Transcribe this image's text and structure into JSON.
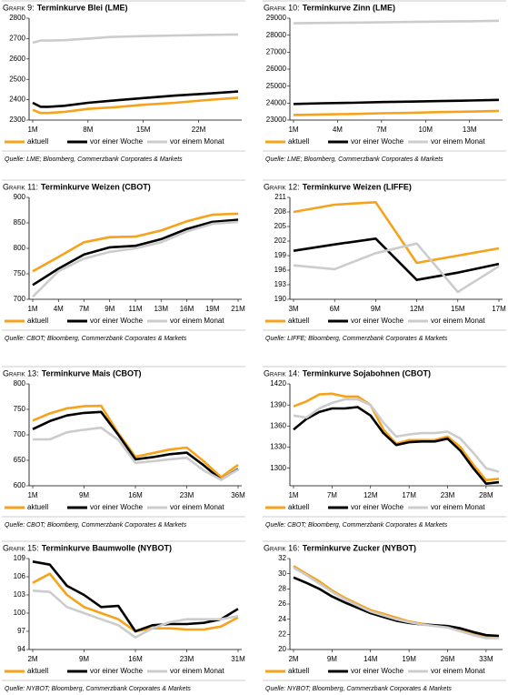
{
  "chart_data": [
    {
      "type": "line",
      "label": "Grafik 9:",
      "title": "Terminkurve Blei (LME)",
      "source": "Quelle: LME; Bloomberg, Commerzbank Corporates & Markets",
      "x": [
        1,
        2,
        3,
        5,
        8,
        11,
        15,
        19,
        23,
        27
      ],
      "xlim": [
        1,
        27
      ],
      "xticks": [
        {
          "value": 1,
          "label": "1M"
        },
        {
          "value": 8,
          "label": "8M"
        },
        {
          "value": 15,
          "label": "15M"
        },
        {
          "value": 22,
          "label": "22M"
        }
      ],
      "ylim": [
        2300,
        2800
      ],
      "yticks": [
        2300,
        2400,
        2500,
        2600,
        2700,
        2800
      ],
      "series": [
        {
          "name": "aktuell",
          "color": "#f7a21b",
          "values": [
            2350,
            2335,
            2335,
            2340,
            2355,
            2362,
            2375,
            2385,
            2398,
            2410
          ]
        },
        {
          "name": "vor einer Woche",
          "color": "#000000",
          "values": [
            2385,
            2365,
            2365,
            2370,
            2385,
            2395,
            2408,
            2420,
            2430,
            2440
          ]
        },
        {
          "name": "vor einem Monat",
          "color": "#cccccc",
          "values": [
            2680,
            2690,
            2690,
            2692,
            2700,
            2708,
            2712,
            2715,
            2718,
            2720
          ]
        }
      ]
    },
    {
      "type": "line",
      "label": "Grafik 10:",
      "title": "Terminkurve Zinn (LME)",
      "source": "Quelle: LME; Bloomberg, Commerzbank Corporates & Markets",
      "x": [
        1,
        3,
        5,
        7,
        9,
        11,
        13,
        15
      ],
      "xlim": [
        1,
        15
      ],
      "xticks": [
        {
          "value": 1,
          "label": "1M"
        },
        {
          "value": 4,
          "label": "4M"
        },
        {
          "value": 7,
          "label": "7M"
        },
        {
          "value": 10,
          "label": "10M"
        },
        {
          "value": 13,
          "label": "13M"
        }
      ],
      "ylim": [
        23000,
        29000
      ],
      "yticks": [
        23000,
        24000,
        25000,
        26000,
        27000,
        28000,
        29000
      ],
      "series": [
        {
          "name": "aktuell",
          "color": "#f7a21b",
          "values": [
            23300,
            23330,
            23360,
            23400,
            23430,
            23470,
            23500,
            23540
          ]
        },
        {
          "name": "vor einer Woche",
          "color": "#000000",
          "values": [
            23950,
            23990,
            24020,
            24060,
            24090,
            24120,
            24150,
            24190
          ]
        },
        {
          "name": "vor einem Monat",
          "color": "#cccccc",
          "values": [
            28700,
            28720,
            28740,
            28760,
            28780,
            28800,
            28820,
            28850
          ]
        }
      ]
    },
    {
      "type": "line",
      "label": "Grafik 11:",
      "title": "Terminkurve Weizen (CBOT)",
      "source": "Quelle: CBOT; Bloomberg, Commerzbank Corporates & Markets",
      "categories": [
        "1M",
        "4M",
        "7M",
        "9M",
        "11M",
        "13M",
        "16M",
        "19M",
        "21M"
      ],
      "ylim": [
        700,
        900
      ],
      "yticks": [
        700,
        750,
        800,
        850,
        900
      ],
      "series": [
        {
          "name": "aktuell",
          "color": "#f7a21b",
          "values": [
            755,
            783,
            812,
            822,
            823,
            835,
            853,
            866,
            868
          ]
        },
        {
          "name": "vor einer Woche",
          "color": "#000000",
          "values": [
            728,
            760,
            788,
            802,
            805,
            818,
            838,
            852,
            856
          ]
        },
        {
          "name": "vor einem Monat",
          "color": "#cccccc",
          "values": [
            705,
            755,
            780,
            793,
            800,
            812,
            833,
            848,
            852
          ]
        }
      ]
    },
    {
      "type": "line",
      "label": "Grafik 12:",
      "title": "Terminkurve Weizen (LIFFE)",
      "source": "Quelle: LIFFE; Bloomberg, Commerzbank Corporates & Markets",
      "categories": [
        "3M",
        "6M",
        "9M",
        "12M",
        "15M",
        "17M"
      ],
      "ylim": [
        190,
        211
      ],
      "yticks": [
        190,
        193,
        196,
        199,
        202,
        205,
        208,
        211
      ],
      "series": [
        {
          "name": "aktuell",
          "color": "#f7a21b",
          "values": [
            208,
            209.5,
            210,
            197.5,
            199,
            200.5
          ]
        },
        {
          "name": "vor einer Woche",
          "color": "#000000",
          "values": [
            200,
            201.3,
            202.5,
            194,
            195.5,
            197.3
          ]
        },
        {
          "name": "vor einem Monat",
          "color": "#cccccc",
          "values": [
            197,
            196.2,
            199.5,
            201.5,
            191.5,
            196.8
          ]
        }
      ]
    },
    {
      "type": "line",
      "label": "Grafik 13:",
      "title": "Terminkurve Mais (CBOT)",
      "source": "Quelle: CBOT; Bloomberg, Commerzbank Corporates & Markets",
      "categories": [
        "1M",
        null,
        null,
        "9M",
        null,
        null,
        "16M",
        null,
        null,
        "23M",
        null,
        null,
        "36M"
      ],
      "ylim": [
        600,
        800
      ],
      "yticks": [
        600,
        650,
        700,
        750,
        800
      ],
      "series": [
        {
          "name": "aktuell",
          "color": "#f7a21b",
          "values": [
            728,
            742,
            752,
            756,
            757,
            703,
            657,
            664,
            671,
            675,
            648,
            617,
            641
          ]
        },
        {
          "name": "vor einer Woche",
          "color": "#000000",
          "values": [
            711,
            727,
            738,
            743,
            745,
            700,
            652,
            656,
            662,
            665,
            640,
            612,
            633
          ]
        },
        {
          "name": "vor einem Monat",
          "color": "#cccccc",
          "values": [
            691,
            691,
            705,
            710,
            714,
            690,
            645,
            648,
            652,
            655,
            630,
            612,
            632
          ]
        }
      ]
    },
    {
      "type": "line",
      "label": "Grafik 14:",
      "title": "Terminkurve Sojabohnen (CBOT)",
      "source": "Quelle: CBOT; Bloomberg, Commerzbank Corporates & Markets",
      "categories": [
        "1M",
        null,
        null,
        "7M",
        null,
        null,
        "12M",
        null,
        null,
        "17M",
        null,
        null,
        "23M",
        null,
        null,
        "28M",
        null
      ],
      "ylim": [
        1275,
        1420
      ],
      "yticks": [
        1300,
        1330,
        1360,
        1390,
        1420
      ],
      "series": [
        {
          "name": "aktuell",
          "color": "#f7a21b",
          "values": [
            1388,
            1395,
            1405,
            1406,
            1402,
            1402,
            1390,
            1355,
            1335,
            1340,
            1340,
            1340,
            1345,
            1330,
            1305,
            1283,
            1285
          ]
        },
        {
          "name": "vor einer Woche",
          "color": "#000000",
          "values": [
            1355,
            1370,
            1380,
            1385,
            1385,
            1387,
            1375,
            1350,
            1333,
            1337,
            1338,
            1338,
            1342,
            1325,
            1300,
            1278,
            1280
          ]
        },
        {
          "name": "vor einem Monat",
          "color": "#cccccc",
          "values": [
            1375,
            1372,
            1385,
            1393,
            1398,
            1398,
            1390,
            1365,
            1345,
            1348,
            1350,
            1350,
            1352,
            1342,
            1322,
            1300,
            1295
          ]
        }
      ]
    },
    {
      "type": "line",
      "label": "Grafik 15:",
      "title": "Terminkurve Baumwolle (NYBOT)",
      "source": "Quelle: NYBOT; Bloomberg, Commerzbank Corporates & Markets",
      "categories": [
        "2M",
        null,
        null,
        "9M",
        null,
        null,
        "16M",
        null,
        null,
        "23M",
        null,
        null,
        "31M"
      ],
      "ylim": [
        94,
        109
      ],
      "yticks": [
        94,
        97,
        100,
        103,
        106,
        109
      ],
      "series": [
        {
          "name": "aktuell",
          "color": "#f7a21b",
          "values": [
            105,
            106.5,
            103,
            101,
            100,
            99,
            97,
            97.5,
            97.5,
            97.3,
            97.3,
            97.8,
            99.3
          ]
        },
        {
          "name": "vor einer Woche",
          "color": "#000000",
          "values": [
            108.5,
            108,
            104.5,
            103,
            101,
            101.2,
            97,
            98,
            98.2,
            98.2,
            98.4,
            99,
            100.7
          ]
        },
        {
          "name": "vor einem Monat",
          "color": "#cccccc",
          "values": [
            103.7,
            103.5,
            101,
            100,
            99,
            98,
            96,
            97.5,
            98.5,
            99,
            99,
            99,
            99.5
          ]
        }
      ]
    },
    {
      "type": "line",
      "label": "Grafik 16:",
      "title": "Terminkurve Zucker (NYBOT)",
      "source": "Quelle: NYBOT; Bloomberg, Commerzbank Corporates & Markets",
      "categories": [
        "2M",
        null,
        null,
        "9M",
        null,
        null,
        "14M",
        null,
        null,
        "19M",
        null,
        null,
        "26M",
        null,
        null,
        "33M",
        null
      ],
      "ylim": [
        20,
        32
      ],
      "yticks": [
        20,
        22,
        24,
        26,
        28,
        30,
        32
      ],
      "series": [
        {
          "name": "aktuell",
          "color": "#f7a21b",
          "values": [
            31,
            30,
            29,
            27.8,
            26.8,
            26,
            25.2,
            24.7,
            24.2,
            23.7,
            23.4,
            23.2,
            23,
            22.6,
            22.1,
            21.7,
            21.6
          ]
        },
        {
          "name": "vor einer Woche",
          "color": "#000000",
          "values": [
            29.5,
            28.8,
            28,
            27,
            26.2,
            25.5,
            24.8,
            24.3,
            23.8,
            23.5,
            23.3,
            23.2,
            23.1,
            22.8,
            22.3,
            21.9,
            21.8
          ]
        },
        {
          "name": "vor einem Monat",
          "color": "#cccccc",
          "values": [
            30.8,
            29.8,
            28.7,
            27.6,
            26.6,
            25.8,
            25,
            24.5,
            24,
            23.6,
            23.3,
            23.1,
            22.9,
            22.4,
            21.9,
            21.5,
            21.5
          ]
        }
      ]
    }
  ]
}
